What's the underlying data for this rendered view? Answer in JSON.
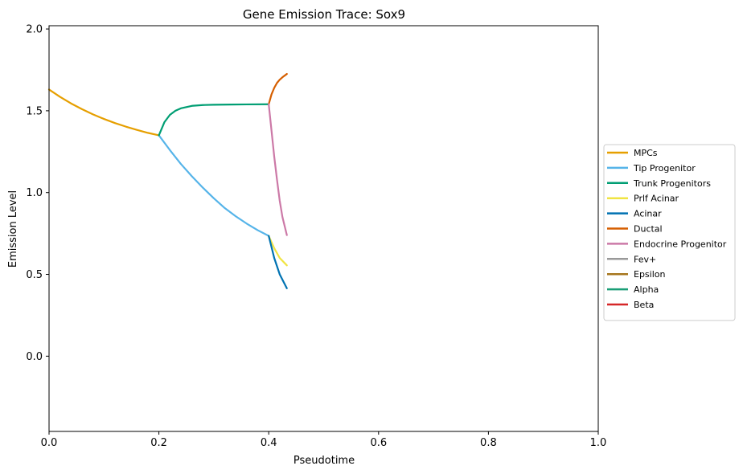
{
  "chart_data": {
    "type": "line",
    "title": "Gene Emission Trace: Sox9",
    "xlabel": "Pseudotime",
    "ylabel": "Emission Level",
    "xlim": [
      0.0,
      1.0
    ],
    "ylim": [
      -0.46,
      2.02
    ],
    "xticks": [
      "0.0",
      "0.2",
      "0.4",
      "0.6",
      "0.8",
      "1.0"
    ],
    "yticks": [
      "0.0",
      "0.5",
      "1.0",
      "1.5",
      "2.0"
    ],
    "grid": false,
    "legend_position": "center right, outside plot",
    "series": [
      {
        "name": "MPCs",
        "color": "#E69F00",
        "x": [
          0.0,
          0.02,
          0.04,
          0.06,
          0.08,
          0.1,
          0.12,
          0.14,
          0.16,
          0.18,
          0.2
        ],
        "y": [
          1.63,
          1.585,
          1.545,
          1.51,
          1.478,
          1.45,
          1.425,
          1.403,
          1.383,
          1.365,
          1.35
        ]
      },
      {
        "name": "Tip Progenitor",
        "color": "#56B4E9",
        "x": [
          0.2,
          0.22,
          0.24,
          0.26,
          0.28,
          0.3,
          0.32,
          0.34,
          0.36,
          0.38,
          0.4
        ],
        "y": [
          1.35,
          1.26,
          1.175,
          1.1,
          1.03,
          0.965,
          0.905,
          0.855,
          0.81,
          0.77,
          0.735
        ]
      },
      {
        "name": "Trunk Progenitors",
        "color": "#009E73",
        "x": [
          0.2,
          0.21,
          0.22,
          0.23,
          0.24,
          0.26,
          0.28,
          0.3,
          0.33,
          0.36,
          0.4
        ],
        "y": [
          1.35,
          1.43,
          1.475,
          1.5,
          1.515,
          1.53,
          1.535,
          1.537,
          1.538,
          1.539,
          1.54
        ]
      },
      {
        "name": "Prlf Acinar",
        "color": "#F0E442",
        "x": [
          0.4,
          0.41,
          0.42,
          0.433
        ],
        "y": [
          0.735,
          0.66,
          0.6,
          0.555
        ]
      },
      {
        "name": "Acinar",
        "color": "#0072B2",
        "x": [
          0.4,
          0.41,
          0.42,
          0.433
        ],
        "y": [
          0.735,
          0.6,
          0.5,
          0.415
        ]
      },
      {
        "name": "Ductal",
        "color": "#D55E00",
        "x": [
          0.4,
          0.405,
          0.41,
          0.415,
          0.42,
          0.425,
          0.433
        ],
        "y": [
          1.54,
          1.6,
          1.64,
          1.67,
          1.69,
          1.705,
          1.725
        ]
      },
      {
        "name": "Endocrine Progenitor",
        "color": "#CC79A7",
        "x": [
          0.4,
          0.405,
          0.41,
          0.415,
          0.42,
          0.425,
          0.433
        ],
        "y": [
          1.54,
          1.38,
          1.22,
          1.08,
          0.95,
          0.85,
          0.74
        ]
      },
      {
        "name": "Fev+",
        "color": "#999999",
        "x": [],
        "y": []
      },
      {
        "name": "Epsilon",
        "color": "#A6761D",
        "x": [],
        "y": []
      },
      {
        "name": "Alpha",
        "color": "#1B9E77",
        "x": [],
        "y": []
      },
      {
        "name": "Beta",
        "color": "#D62728",
        "x": [],
        "y": []
      }
    ]
  }
}
